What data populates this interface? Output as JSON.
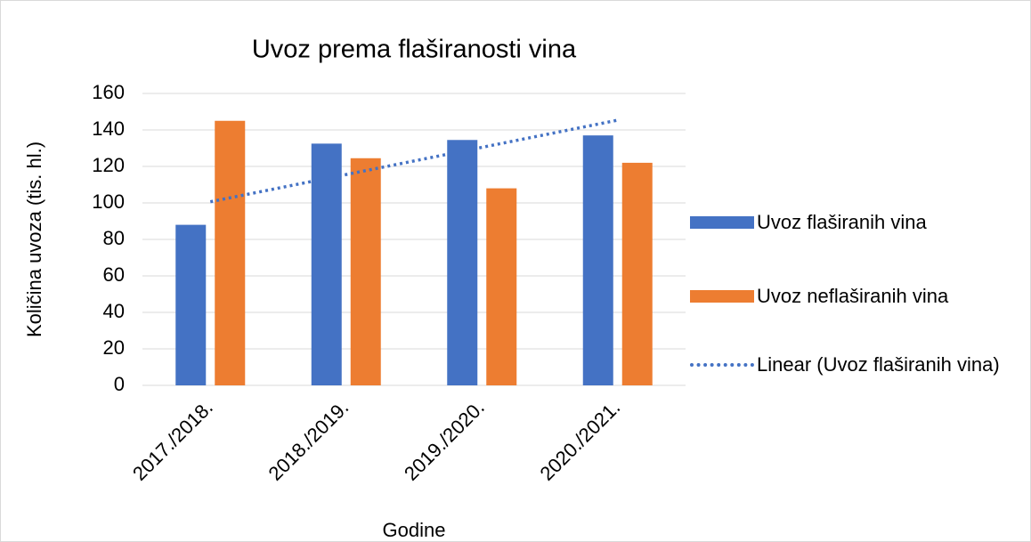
{
  "chart_data": {
    "type": "bar",
    "title": "Uvoz prema flaširanosti vina",
    "x_label": "Godine",
    "y_label": "Količina uvoza (tis. hl.)",
    "categories": [
      "2017./2018.",
      "2018./2019.",
      "2019./2020.",
      "2020./2021."
    ],
    "series": [
      {
        "name": "Uvoz flaširanih vina",
        "color": "#4472c4",
        "values": [
          88,
          132.5,
          134.5,
          137
        ]
      },
      {
        "name": "Uvoz neflaširanih vina",
        "color": "#ed7d31",
        "values": [
          145,
          124.5,
          108,
          122
        ]
      },
      {
        "name": "Linear (Uvoz flaširanih vina)",
        "color": "#4472c4",
        "type": "line",
        "dash": "dotted",
        "values": [
          100.65,
          115.55,
          130.45,
          145.35
        ]
      }
    ],
    "ylim": [
      0,
      160
    ],
    "yticks": [
      0,
      20,
      40,
      60,
      80,
      100,
      120,
      140,
      160
    ],
    "grid": true,
    "legend": "right"
  }
}
